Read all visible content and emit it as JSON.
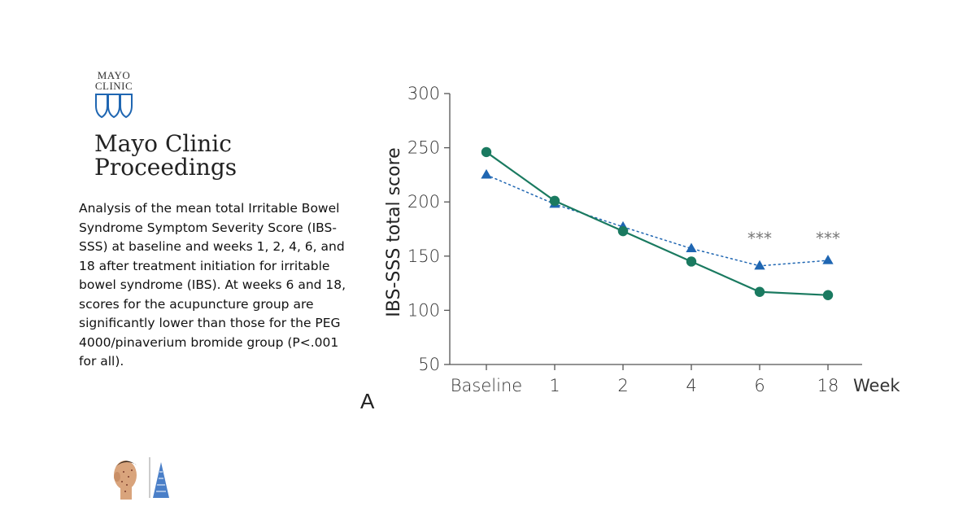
{
  "logo": {
    "line1": "MAYO",
    "line2": "CLINIC"
  },
  "journal": {
    "line1": "Mayo Clinic",
    "line2": "Proceedings"
  },
  "caption": "Analysis of the mean total Irritable Bowel Syndrome Symptom Severity Score (IBS-SSS) at baseline and weeks 1, 2, 4, 6, and 18 after treatment initiation for irritable bowel syndrome (IBS). At weeks 6 and 18, scores for the acupuncture group are significantly lower than those for the PEG 4000/pinaverium bromide group (P<.001 for all).",
  "panel_label": "A",
  "colors": {
    "green": "#1a7a60",
    "blue": "#1f66b2",
    "axis": "#555555",
    "text": "#333333"
  },
  "chart_data": {
    "type": "line",
    "categories": [
      "Baseline",
      "1",
      "2",
      "4",
      "6",
      "18"
    ],
    "x_unit_label": "Week",
    "ylabel": "IBS-SSS total score",
    "ylim": [
      50,
      300
    ],
    "yticks": [
      "300",
      "250",
      "200",
      "150",
      "100",
      "50"
    ],
    "grid": false,
    "series": [
      {
        "marker": "circle",
        "color": "#1a7a60",
        "line": "solid",
        "values": [
          246,
          201,
          173,
          145,
          117,
          114
        ]
      },
      {
        "marker": "triangle",
        "color": "#1f66b2",
        "line": "dotted",
        "values": [
          225,
          198,
          177,
          157,
          141,
          146
        ]
      }
    ],
    "annotations": [
      {
        "category": "6",
        "text": "***"
      },
      {
        "category": "18",
        "text": "***"
      }
    ]
  }
}
